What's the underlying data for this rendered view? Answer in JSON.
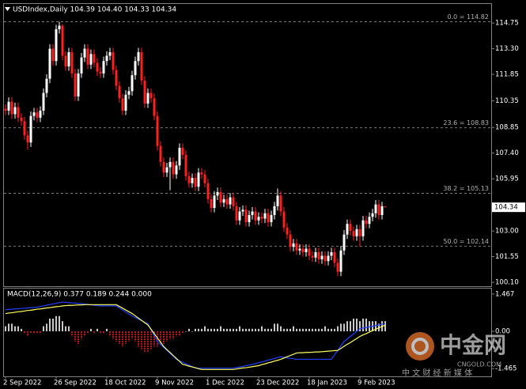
{
  "chart_data": {
    "type": "candlestick",
    "header": "USDIndex,Daily  104.39 104.40 104.33 104.34",
    "categories": [
      "2 Sep 2022",
      null,
      null,
      null,
      null,
      null,
      null,
      null,
      null,
      null,
      null,
      null,
      null,
      null,
      null,
      null,
      "26 Sep 2022",
      null,
      null,
      null,
      null,
      null,
      null,
      null,
      null,
      null,
      null,
      null,
      null,
      null,
      null,
      null,
      "18 Oct 2022",
      null,
      null,
      null,
      null,
      null,
      null,
      null,
      null,
      null,
      null,
      null,
      null,
      null,
      null,
      null,
      "9 Nov 2022",
      null,
      null,
      null,
      null,
      null,
      null,
      null,
      null,
      null,
      null,
      null,
      null,
      null,
      null,
      null,
      "1 Dec 2022",
      null,
      null,
      null,
      null,
      null,
      null,
      null,
      null,
      null,
      null,
      null,
      null,
      null,
      null,
      null,
      "23 Dec 2022",
      null,
      null,
      null,
      null,
      null,
      null,
      null,
      null,
      null,
      null,
      null,
      null,
      null,
      null,
      null,
      "18 Jan 2023",
      null,
      null,
      null,
      null,
      null,
      null,
      null,
      null,
      null,
      null,
      null,
      null,
      null,
      null,
      null,
      "9 Feb 2023",
      null,
      null,
      null,
      null,
      null,
      null,
      null,
      null
    ],
    "ohlc": [
      [
        109.9,
        110.15,
        109.55,
        109.8
      ],
      [
        109.8,
        110.55,
        109.55,
        110.3
      ],
      [
        110.3,
        110.55,
        109.35,
        109.6
      ],
      [
        109.6,
        110.25,
        109.35,
        110.0
      ],
      [
        110.0,
        110.25,
        109.15,
        109.4
      ],
      [
        109.4,
        109.65,
        108.95,
        109.2
      ],
      [
        109.2,
        109.45,
        108.15,
        108.4
      ],
      [
        108.4,
        108.65,
        107.6,
        108.0
      ],
      [
        108.0,
        109.75,
        107.75,
        109.5
      ],
      [
        109.5,
        109.95,
        109.25,
        109.7
      ],
      [
        109.7,
        109.95,
        109.15,
        109.4
      ],
      [
        109.4,
        110.05,
        109.15,
        109.8
      ],
      [
        109.8,
        111.05,
        109.55,
        110.8
      ],
      [
        110.8,
        111.85,
        110.55,
        111.6
      ],
      [
        111.6,
        113.55,
        111.35,
        113.3
      ],
      [
        113.3,
        113.55,
        112.35,
        112.6
      ],
      [
        112.6,
        114.65,
        112.35,
        114.4
      ],
      [
        114.4,
        114.82,
        114.15,
        114.6
      ],
      [
        114.6,
        114.7,
        112.65,
        112.9
      ],
      [
        112.9,
        113.15,
        112.05,
        112.3
      ],
      [
        112.3,
        113.35,
        112.05,
        113.1
      ],
      [
        113.1,
        113.35,
        111.65,
        111.9
      ],
      [
        111.9,
        112.15,
        110.35,
        110.6
      ],
      [
        110.6,
        112.15,
        110.35,
        111.9
      ],
      [
        111.9,
        113.05,
        111.65,
        112.8
      ],
      [
        112.8,
        113.55,
        112.55,
        113.3
      ],
      [
        113.3,
        113.55,
        112.15,
        112.4
      ],
      [
        112.4,
        113.25,
        112.15,
        113.0
      ],
      [
        113.0,
        113.25,
        112.25,
        112.5
      ],
      [
        112.5,
        112.75,
        111.75,
        112.0
      ],
      [
        112.0,
        112.25,
        111.65,
        111.9
      ],
      [
        111.9,
        112.85,
        111.65,
        112.6
      ],
      [
        112.6,
        113.15,
        112.35,
        112.9
      ],
      [
        112.9,
        113.35,
        112.65,
        113.1
      ],
      [
        113.1,
        113.35,
        111.85,
        112.1
      ],
      [
        112.1,
        112.35,
        110.95,
        111.2
      ],
      [
        111.2,
        111.45,
        110.25,
        110.5
      ],
      [
        110.5,
        110.75,
        109.55,
        109.8
      ],
      [
        109.8,
        110.95,
        109.55,
        110.7
      ],
      [
        110.7,
        111.15,
        110.45,
        110.9
      ],
      [
        110.9,
        112.05,
        110.65,
        111.8
      ],
      [
        111.8,
        112.85,
        111.55,
        112.6
      ],
      [
        112.6,
        113.35,
        112.35,
        113.1
      ],
      [
        113.1,
        113.35,
        111.25,
        111.5
      ],
      [
        111.5,
        111.75,
        109.95,
        110.2
      ],
      [
        110.2,
        111.05,
        109.95,
        110.8
      ],
      [
        110.8,
        111.05,
        110.25,
        110.5
      ],
      [
        110.5,
        110.75,
        109.25,
        109.5
      ],
      [
        109.5,
        109.75,
        107.55,
        107.8
      ],
      [
        107.8,
        108.05,
        106.65,
        106.9
      ],
      [
        106.9,
        107.15,
        106.05,
        106.3
      ],
      [
        106.3,
        106.85,
        106.05,
        106.6
      ],
      [
        106.6,
        107.15,
        105.3,
        106.9
      ],
      [
        106.9,
        107.15,
        105.95,
        106.2
      ],
      [
        106.2,
        106.95,
        105.95,
        106.7
      ],
      [
        106.7,
        107.95,
        106.45,
        107.7
      ],
      [
        107.7,
        107.95,
        107.05,
        107.3
      ],
      [
        107.3,
        107.55,
        105.85,
        106.1
      ],
      [
        106.1,
        106.35,
        105.45,
        105.7
      ],
      [
        105.7,
        106.25,
        105.45,
        106.0
      ],
      [
        106.0,
        106.25,
        105.25,
        105.5
      ],
      [
        105.5,
        106.55,
        105.25,
        106.3
      ],
      [
        106.3,
        106.55,
        105.95,
        106.2
      ],
      [
        106.2,
        106.45,
        105.45,
        105.7
      ],
      [
        105.7,
        105.95,
        104.55,
        104.8
      ],
      [
        104.8,
        105.05,
        104.05,
        104.3
      ],
      [
        104.3,
        105.25,
        104.05,
        105.0
      ],
      [
        105.0,
        105.45,
        104.75,
        105.2
      ],
      [
        105.2,
        105.45,
        104.35,
        104.6
      ],
      [
        104.6,
        105.05,
        104.35,
        104.8
      ],
      [
        104.8,
        105.05,
        104.25,
        104.5
      ],
      [
        104.5,
        105.15,
        104.25,
        104.9
      ],
      [
        104.9,
        105.15,
        104.15,
        104.4
      ],
      [
        104.4,
        104.65,
        103.35,
        103.6
      ],
      [
        103.6,
        104.35,
        103.35,
        104.1
      ],
      [
        104.1,
        104.45,
        103.85,
        104.2
      ],
      [
        104.2,
        104.45,
        103.25,
        103.5
      ],
      [
        103.5,
        104.15,
        103.25,
        103.9
      ],
      [
        103.9,
        104.35,
        103.65,
        104.1
      ],
      [
        104.1,
        104.35,
        103.35,
        103.6
      ],
      [
        103.6,
        104.05,
        103.35,
        103.8
      ],
      [
        103.8,
        104.05,
        103.45,
        103.7
      ],
      [
        103.7,
        104.25,
        103.45,
        104.0
      ],
      [
        104.0,
        104.25,
        103.25,
        103.5
      ],
      [
        103.5,
        104.15,
        103.25,
        103.9
      ],
      [
        103.9,
        104.65,
        103.65,
        104.4
      ],
      [
        104.4,
        105.4,
        104.15,
        105.0
      ],
      [
        105.0,
        105.25,
        103.85,
        104.1
      ],
      [
        104.1,
        104.35,
        102.95,
        103.2
      ],
      [
        103.2,
        103.45,
        102.55,
        102.8
      ],
      [
        102.8,
        103.05,
        101.85,
        102.1
      ],
      [
        102.1,
        102.55,
        101.85,
        102.3
      ],
      [
        102.3,
        102.55,
        101.65,
        101.9
      ],
      [
        101.9,
        102.25,
        101.65,
        102.0
      ],
      [
        102.0,
        102.25,
        101.55,
        101.8
      ],
      [
        101.8,
        102.25,
        101.55,
        102.0
      ],
      [
        102.0,
        102.25,
        101.35,
        101.6
      ],
      [
        101.6,
        101.85,
        101.25,
        101.5
      ],
      [
        101.5,
        102.05,
        101.25,
        101.8
      ],
      [
        101.8,
        102.05,
        101.15,
        101.4
      ],
      [
        101.4,
        101.85,
        101.15,
        101.6
      ],
      [
        101.6,
        101.85,
        101.05,
        101.3
      ],
      [
        101.3,
        101.85,
        101.05,
        101.6
      ],
      [
        101.6,
        102.05,
        101.35,
        101.8
      ],
      [
        101.8,
        102.05,
        100.95,
        101.2
      ],
      [
        101.2,
        101.45,
        100.45,
        100.7
      ],
      [
        100.7,
        102.15,
        100.45,
        101.9
      ],
      [
        101.9,
        103.05,
        101.65,
        102.8
      ],
      [
        102.8,
        103.65,
        102.55,
        103.4
      ],
      [
        103.4,
        103.65,
        102.75,
        103.0
      ],
      [
        103.0,
        103.25,
        102.45,
        102.7
      ],
      [
        102.7,
        103.35,
        102.45,
        103.1
      ],
      [
        103.1,
        103.35,
        102.1,
        102.7
      ],
      [
        102.7,
        103.85,
        102.45,
        103.6
      ],
      [
        103.6,
        103.85,
        103.15,
        103.4
      ],
      [
        103.4,
        104.05,
        103.15,
        103.8
      ],
      [
        103.8,
        104.25,
        103.55,
        104.0
      ],
      [
        104.0,
        104.75,
        103.75,
        104.5
      ],
      [
        104.5,
        104.75,
        103.65,
        103.9
      ],
      [
        103.9,
        104.65,
        103.65,
        104.4
      ],
      [
        104.39,
        104.4,
        104.33,
        104.34
      ]
    ],
    "up_color": "#ffffff",
    "down_color": "#ff2020",
    "ylim": [
      99.88,
      115.38
    ],
    "yticks": [
      114.75,
      {
        "value": 113.3,
        "label": "113.30"
      },
      111.85,
      110.35,
      108.85,
      {
        "value": 107.4,
        "label": "107.40"
      },
      105.95,
      {
        "value": 103,
        "label": "103.00"
      },
      101.55,
      {
        "value": 100.1,
        "label": "100.10"
      }
    ],
    "current_price": 104.34,
    "fib_levels": [
      {
        "label": "0.0 = 114.82",
        "value": 114.82
      },
      {
        "label": "23.6 = 108.83",
        "value": 108.83
      },
      {
        "label": "38.2 = 105.13",
        "value": 105.13
      },
      {
        "label": "50.0 = 102.14",
        "value": 102.14
      }
    ],
    "fib_color": "#7a7a7a",
    "macd": {
      "label": "MACD(12,26,9) 0.377 0.189 0.244 0.000",
      "ylim": [
        -1.77,
        1.65
      ],
      "yticks": [
        1.467,
        {
          "value": 0,
          "label": "0.00"
        },
        -1.465
      ],
      "histogram_up_color": "#c8c8c8",
      "histogram_down_color": "#ff2020",
      "main_color": "#2040ff",
      "signal_color": "#ffff60",
      "histogram": [
        0.2,
        0.3,
        0.3,
        0.2,
        0.2,
        0.1,
        -0.1,
        -0.2,
        -0.1,
        -0.1,
        -0.1,
        -0.1,
        0.2,
        0.3,
        0.5,
        0.5,
        0.6,
        0.6,
        0.4,
        0.2,
        0.2,
        -0.2,
        -0.4,
        -0.5,
        -0.3,
        -0.2,
        -0.1,
        0.1,
        -0.1,
        0.1,
        -0.1,
        -0.1,
        0.1,
        -0.2,
        -0.3,
        -0.4,
        -0.5,
        -0.6,
        -0.5,
        -0.4,
        -0.3,
        -0.4,
        -0.6,
        -0.7,
        -0.8,
        -0.8,
        -0.7,
        -0.6,
        -0.6,
        -0.5,
        -0.5,
        -0.4,
        -0.3,
        -0.3,
        -0.2,
        -0.2,
        -0.1,
        0.0,
        0.1,
        0.0,
        0.1,
        0.1,
        0.1,
        0.2,
        0.1,
        0.1,
        0.1,
        0.1,
        0.2,
        0.1,
        0.1,
        0.1,
        0.1,
        0.1,
        0.2,
        0.1,
        0.1,
        0.1,
        0.1,
        0.1,
        0.1,
        0.2,
        0.1,
        0.1,
        0.1,
        0.3,
        0.3,
        0.2,
        0.1,
        0.1,
        0.1,
        0.2,
        0.1,
        0.1,
        0.1,
        0.1,
        0.1,
        0.1,
        0.1,
        0.1,
        0.1,
        0.2,
        0.1,
        0.1,
        0.1,
        0.2,
        0.3,
        0.3,
        0.4,
        0.4,
        0.5,
        0.5,
        0.4,
        0.5,
        0.5,
        0.4,
        0.4,
        0.4,
        0.3,
        0.4,
        0.4
      ],
      "main": [
        0.85,
        0.86,
        0.87,
        0.88,
        0.89,
        0.9,
        0.91,
        0.92,
        0.93,
        0.94,
        0.95,
        0.98,
        1.0,
        1.03,
        1.05,
        1.08,
        1.1,
        1.13,
        1.15,
        1.14,
        1.13,
        1.12,
        1.11,
        1.1,
        1.09,
        1.07,
        1.06,
        1.04,
        1.03,
        1.01,
        1.0,
        1.0,
        1.0,
        1.0,
        1.0,
        1.0,
        0.92,
        0.84,
        0.76,
        0.68,
        0.6,
        0.54,
        0.48,
        0.42,
        0.36,
        0.3,
        0.07,
        -0.17,
        -0.4,
        -0.52,
        -0.63,
        -0.75,
        -0.87,
        -0.98,
        -1.1,
        -1.16,
        -1.22,
        -1.28,
        -1.33,
        -1.39,
        -1.45,
        -1.45,
        -1.45,
        -1.45,
        -1.45,
        -1.45,
        -1.45,
        -1.45,
        -1.45,
        -1.45,
        -1.45,
        -1.45,
        -1.45,
        -1.42,
        -1.4,
        -1.38,
        -1.35,
        -1.33,
        -1.3,
        -1.27,
        -1.23,
        -1.2,
        -1.17,
        -1.13,
        -1.1,
        -1.07,
        -1.03,
        -1.0,
        -1.02,
        -1.04,
        -1.06,
        -1.08,
        -1.1,
        -1.1,
        -1.1,
        -1.1,
        -1.1,
        -1.1,
        -1.1,
        -1.1,
        -1.1,
        -1.1,
        -1.1,
        -1.1,
        -0.92,
        -0.75,
        -0.57,
        -0.4,
        -0.3,
        -0.2,
        -0.1,
        0.0,
        0.1,
        0.13,
        0.15,
        0.18,
        0.2,
        0.23,
        0.25,
        0.28,
        0.3
      ],
      "signal": [
        0.7,
        0.72,
        0.73,
        0.75,
        0.77,
        0.78,
        0.8,
        0.82,
        0.83,
        0.85,
        0.87,
        0.88,
        0.9,
        0.92,
        0.93,
        0.95,
        0.97,
        0.98,
        1.0,
        1.01,
        1.02,
        1.02,
        1.03,
        1.04,
        1.04,
        1.05,
        1.05,
        1.05,
        1.05,
        1.05,
        1.05,
        1.05,
        1.05,
        1.05,
        1.05,
        1.05,
        0.98,
        0.91,
        0.84,
        0.77,
        0.7,
        0.61,
        0.52,
        0.43,
        0.34,
        0.25,
        0.08,
        -0.09,
        -0.26,
        -0.43,
        -0.6,
        -0.72,
        -0.83,
        -0.95,
        -1.07,
        -1.18,
        -1.3,
        -1.33,
        -1.37,
        -1.4,
        -1.43,
        -1.47,
        -1.5,
        -1.5,
        -1.5,
        -1.5,
        -1.5,
        -1.5,
        -1.5,
        -1.5,
        -1.5,
        -1.5,
        -1.5,
        -1.48,
        -1.46,
        -1.44,
        -1.43,
        -1.41,
        -1.39,
        -1.37,
        -1.35,
        -1.31,
        -1.28,
        -1.24,
        -1.21,
        -1.17,
        -1.14,
        -1.1,
        -1.05,
        -1.0,
        -0.95,
        -0.9,
        -0.85,
        -0.84,
        -0.84,
        -0.83,
        -0.83,
        -0.82,
        -0.81,
        -0.81,
        -0.8,
        -0.79,
        -0.78,
        -0.77,
        -0.76,
        -0.75,
        -0.67,
        -0.59,
        -0.51,
        -0.44,
        -0.36,
        -0.28,
        -0.2,
        -0.14,
        -0.09,
        -0.03,
        0.03,
        0.08,
        0.14,
        0.19,
        0.25
      ]
    },
    "watermark": {
      "brand": "中金网",
      "site": "CNGOLD.COM",
      "tagline": "中 文 财 经 新 媒 体"
    }
  }
}
